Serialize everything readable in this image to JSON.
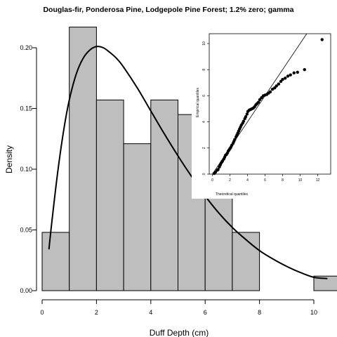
{
  "chart_data": [
    {
      "type": "histogram",
      "title": "Douglas-fir, Ponderosa Pine, Lodgepole Pine Forest; 1.2% zero; gamma",
      "xlabel": "Duff Depth (cm)",
      "ylabel": "Density",
      "xlim": [
        0,
        11
      ],
      "ylim": [
        0,
        0.21
      ],
      "x_ticks": [
        "0",
        "2",
        "4",
        "6",
        "8",
        "10"
      ],
      "y_ticks": [
        "0.00",
        "0.05",
        "0.10",
        "0.15",
        "0.20"
      ],
      "bins": [
        {
          "from": 0,
          "to": 1,
          "density": 0.048
        },
        {
          "from": 1,
          "to": 2,
          "density": 0.217
        },
        {
          "from": 2,
          "to": 3,
          "density": 0.157
        },
        {
          "from": 3,
          "to": 4,
          "density": 0.121
        },
        {
          "from": 4,
          "to": 5,
          "density": 0.157
        },
        {
          "from": 5,
          "to": 6,
          "density": 0.145
        },
        {
          "from": 6,
          "to": 7,
          "density": 0.096
        },
        {
          "from": 7,
          "to": 8,
          "density": 0.048
        },
        {
          "from": 8,
          "to": 9,
          "density": 0.0
        },
        {
          "from": 9,
          "to": 10,
          "density": 0.0
        },
        {
          "from": 10,
          "to": 11,
          "density": 0.012
        }
      ],
      "bar_color": "#bebebe",
      "fitted_curve": {
        "distribution": "gamma",
        "points": [
          [
            0.25,
            0.034
          ],
          [
            0.4,
            0.065
          ],
          [
            0.6,
            0.102
          ],
          [
            0.8,
            0.133
          ],
          [
            1.0,
            0.157
          ],
          [
            1.25,
            0.178
          ],
          [
            1.5,
            0.191
          ],
          [
            1.75,
            0.198
          ],
          [
            2.0,
            0.201
          ],
          [
            2.25,
            0.2
          ],
          [
            2.5,
            0.196
          ],
          [
            2.75,
            0.191
          ],
          [
            3.0,
            0.184
          ],
          [
            3.5,
            0.167
          ],
          [
            4.0,
            0.148
          ],
          [
            4.5,
            0.129
          ],
          [
            5.0,
            0.111
          ],
          [
            5.5,
            0.094
          ],
          [
            6.0,
            0.078
          ],
          [
            6.5,
            0.064
          ],
          [
            7.0,
            0.052
          ],
          [
            7.5,
            0.042
          ],
          [
            8.0,
            0.033
          ],
          [
            8.5,
            0.026
          ],
          [
            9.0,
            0.02
          ],
          [
            9.5,
            0.015
          ],
          [
            10.0,
            0.011
          ],
          [
            10.5,
            0.01
          ]
        ]
      }
    },
    {
      "type": "scatter",
      "subtype": "qq-plot",
      "xlabel": "Theoretical quantiles",
      "ylabel": "Empirical quantiles",
      "xlim": [
        -0.5,
        13.2
      ],
      "ylim": [
        -0.2,
        10.9
      ],
      "x_ticks": [
        "0",
        "2",
        "4",
        "6",
        "8",
        "10",
        "12"
      ],
      "y_ticks": [
        "0",
        "2",
        "4",
        "6",
        "8",
        "10"
      ],
      "reference_line": [
        [
          0,
          0
        ],
        [
          12.7,
          12.7
        ]
      ],
      "points": [
        [
          0.2,
          0.05
        ],
        [
          0.35,
          0.15
        ],
        [
          0.55,
          0.3
        ],
        [
          0.65,
          0.35
        ],
        [
          0.8,
          0.55
        ],
        [
          0.9,
          0.7
        ],
        [
          1.0,
          0.85
        ],
        [
          1.1,
          0.95
        ],
        [
          1.15,
          1.0
        ],
        [
          1.3,
          1.15
        ],
        [
          1.4,
          1.3
        ],
        [
          1.5,
          1.45
        ],
        [
          1.6,
          1.5
        ],
        [
          1.7,
          1.6
        ],
        [
          1.8,
          1.75
        ],
        [
          1.9,
          1.85
        ],
        [
          2.0,
          1.95
        ],
        [
          2.1,
          2.05
        ],
        [
          2.2,
          2.2
        ],
        [
          2.35,
          2.35
        ],
        [
          2.45,
          2.5
        ],
        [
          2.55,
          2.65
        ],
        [
          2.7,
          2.85
        ],
        [
          2.8,
          3.0
        ],
        [
          2.9,
          3.15
        ],
        [
          3.0,
          3.3
        ],
        [
          3.1,
          3.45
        ],
        [
          3.2,
          3.6
        ],
        [
          3.3,
          3.75
        ],
        [
          3.45,
          3.9
        ],
        [
          3.55,
          4.05
        ],
        [
          3.7,
          4.25
        ],
        [
          3.8,
          4.4
        ],
        [
          3.95,
          4.6
        ],
        [
          4.05,
          4.8
        ],
        [
          4.2,
          4.9
        ],
        [
          4.35,
          4.95
        ],
        [
          4.5,
          5.0
        ],
        [
          4.65,
          5.05
        ],
        [
          4.8,
          5.15
        ],
        [
          4.95,
          5.3
        ],
        [
          5.1,
          5.4
        ],
        [
          5.25,
          5.5
        ],
        [
          5.4,
          5.7
        ],
        [
          5.6,
          5.85
        ],
        [
          5.8,
          6.0
        ],
        [
          6.0,
          6.05
        ],
        [
          6.2,
          6.1
        ],
        [
          6.4,
          6.2
        ],
        [
          6.6,
          6.3
        ],
        [
          6.85,
          6.5
        ],
        [
          7.1,
          6.6
        ],
        [
          7.3,
          6.75
        ],
        [
          7.55,
          6.9
        ],
        [
          7.8,
          7.1
        ],
        [
          8.0,
          7.25
        ],
        [
          8.3,
          7.35
        ],
        [
          8.6,
          7.5
        ],
        [
          8.9,
          7.6
        ],
        [
          9.3,
          7.75
        ],
        [
          9.7,
          7.8
        ],
        [
          10.5,
          8.0
        ],
        [
          12.5,
          10.3
        ]
      ],
      "point_color": "#000000"
    }
  ]
}
